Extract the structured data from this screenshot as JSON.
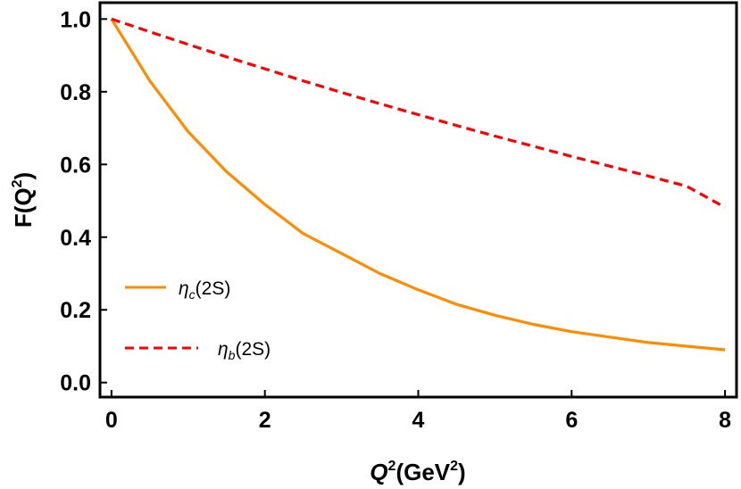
{
  "chart_data": {
    "type": "line",
    "xlim": [
      -0.15,
      8.15
    ],
    "ylim": [
      -0.04,
      1.045
    ],
    "x_ticks": [
      0,
      2,
      4,
      6,
      8
    ],
    "x_tick_labels": [
      "0",
      "2",
      "4",
      "6",
      "8"
    ],
    "y_ticks": [
      0.0,
      0.2,
      0.4,
      0.6,
      0.8,
      1.0
    ],
    "y_tick_labels": [
      "0.0",
      "0.2",
      "0.4",
      "0.6",
      "0.8",
      "1.0"
    ],
    "xlabel": {
      "base": "Q",
      "sup": "2",
      "unit_open": "(GeV",
      "unit_sup": "2",
      "unit_close": ")"
    },
    "ylabel": {
      "open": "F(Q",
      "sup": "2",
      "close": ")"
    },
    "grid": false,
    "legend_position": "lower-left",
    "x": [
      0,
      0.5,
      1,
      1.5,
      2,
      2.5,
      3,
      3.5,
      4,
      4.5,
      5,
      5.5,
      6,
      6.5,
      7,
      7.5,
      8
    ],
    "series": [
      {
        "name": "ηc(2S)",
        "legend": {
          "symbol": "η",
          "sub": "c",
          "rest": "(2S)"
        },
        "color": "#ff8c00",
        "style": "solid",
        "values": [
          1.0,
          0.83,
          0.69,
          0.58,
          0.49,
          0.41,
          0.355,
          0.3,
          0.255,
          0.215,
          0.185,
          0.16,
          0.14,
          0.125,
          0.11,
          0.1,
          0.09
        ]
      },
      {
        "name": "ηb(2S)",
        "legend": {
          "symbol": "η",
          "sub": "b",
          "rest": "(2S)"
        },
        "color": "#ff0000",
        "style": "dashed",
        "values": [
          1.0,
          0.965,
          0.93,
          0.896,
          0.863,
          0.83,
          0.798,
          0.767,
          0.737,
          0.707,
          0.678,
          0.65,
          0.622,
          0.595,
          0.568,
          0.54,
          0.482
        ]
      }
    ]
  }
}
